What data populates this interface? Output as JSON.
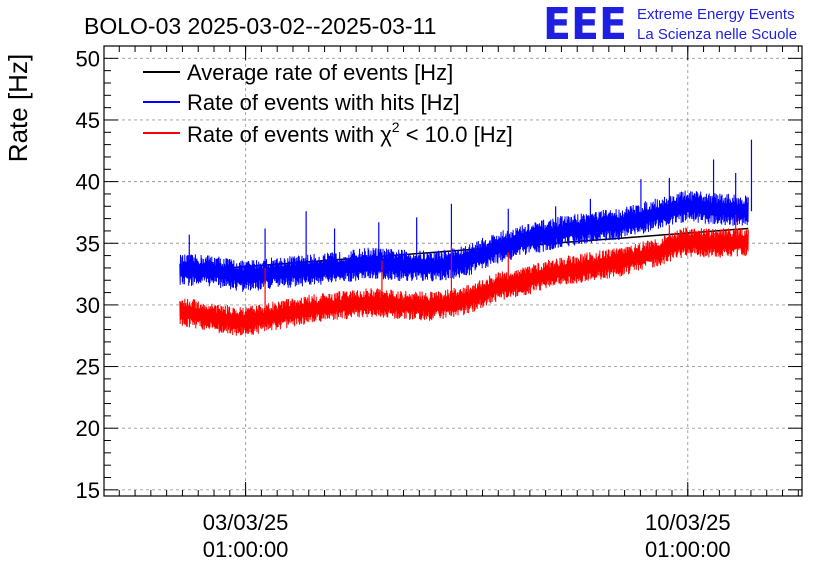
{
  "chart_data": {
    "type": "line",
    "title": "BOLO-03 2025-03-02--2025-03-11",
    "ylabel": "Rate [Hz]",
    "xlabel": "",
    "ylim": [
      14.5,
      51
    ],
    "yticks": [
      15,
      20,
      25,
      30,
      35,
      40,
      45,
      50
    ],
    "x_unit": "days since 2025-03-02 00:00",
    "xlim": [
      -1.2,
      9.85
    ],
    "xticks": [
      {
        "x": 1.0417,
        "line1": "03/03/25",
        "line2": "01:00:00"
      },
      {
        "x": 8.0417,
        "line1": "10/03/25",
        "line2": "01:00:00"
      }
    ],
    "grid": true,
    "legend_position": "top-left",
    "series": [
      {
        "name": "Average rate of events [Hz]",
        "color": "#000000",
        "x": [
          0,
          9
        ],
        "values": [
          32.7,
          36.2
        ]
      },
      {
        "name": "Rate of events with hits [Hz]",
        "color": "#0000ff",
        "x": [
          0,
          0.5,
          1.0,
          1.5,
          2.0,
          2.5,
          3.0,
          3.5,
          4.0,
          4.5,
          5.0,
          5.5,
          6.0,
          6.5,
          7.0,
          7.5,
          8.0,
          8.5,
          9.0
        ],
        "values": [
          32.8,
          32.8,
          32.3,
          32.6,
          32.8,
          33.0,
          33.4,
          33.2,
          33.1,
          33.5,
          34.6,
          35.3,
          35.9,
          36.3,
          36.6,
          37.3,
          38.0,
          37.8,
          37.6
        ],
        "spread": 1.3,
        "spikes": [
          {
            "x": 0.15,
            "y": 35.7
          },
          {
            "x": 1.35,
            "y": 36.2
          },
          {
            "x": 2.0,
            "y": 37.6
          },
          {
            "x": 2.45,
            "y": 36.2
          },
          {
            "x": 3.15,
            "y": 36.7
          },
          {
            "x": 3.75,
            "y": 37.1
          },
          {
            "x": 4.3,
            "y": 38.2
          },
          {
            "x": 5.2,
            "y": 37.8
          },
          {
            "x": 5.95,
            "y": 38.0
          },
          {
            "x": 6.5,
            "y": 38.6
          },
          {
            "x": 7.3,
            "y": 40.2
          },
          {
            "x": 7.75,
            "y": 40.3
          },
          {
            "x": 8.45,
            "y": 41.8
          },
          {
            "x": 8.8,
            "y": 40.7
          },
          {
            "x": 9.05,
            "y": 43.4
          }
        ]
      },
      {
        "name": "Rate of events with χ² < 10.0 [Hz]",
        "legend_prefix": "Rate of events with ",
        "legend_symbol": "χ",
        "legend_superscript": "2",
        "legend_suffix": " < 10.0 [Hz]",
        "color": "#ff0000",
        "x": [
          0,
          0.5,
          1.0,
          1.5,
          2.0,
          2.5,
          3.0,
          3.5,
          4.0,
          4.5,
          5.0,
          5.5,
          6.0,
          6.5,
          7.0,
          7.5,
          8.0,
          8.5,
          9.0
        ],
        "values": [
          29.5,
          29.0,
          28.6,
          29.1,
          29.6,
          29.9,
          30.2,
          30.0,
          29.9,
          30.3,
          31.4,
          32.0,
          32.7,
          33.1,
          33.5,
          34.2,
          35.1,
          35.0,
          35.1
        ],
        "spread": 1.2,
        "spikes": [
          {
            "x": 1.35,
            "y": 33.0
          },
          {
            "x": 3.2,
            "y": 33.6
          },
          {
            "x": 4.3,
            "y": 34.8
          },
          {
            "x": 5.2,
            "y": 34.3
          },
          {
            "x": 7.75,
            "y": 36.5
          },
          {
            "x": 8.8,
            "y": 37.3
          }
        ]
      }
    ]
  },
  "logo": {
    "mark": "EEE",
    "line1": "Extreme Energy Events",
    "line2": "La Scienza nelle Scuole"
  }
}
